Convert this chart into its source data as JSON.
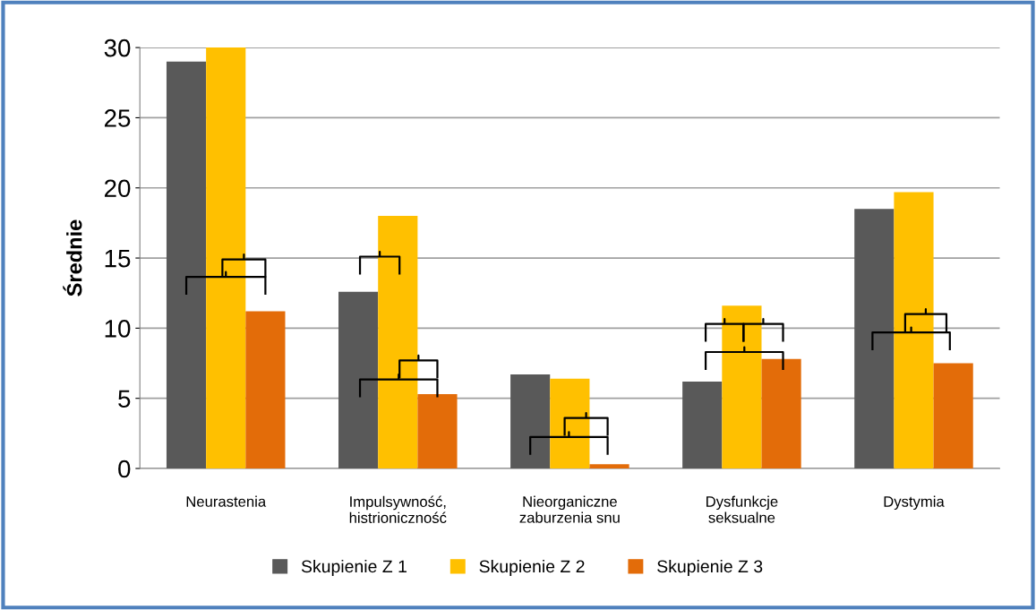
{
  "chart_data": {
    "type": "bar",
    "ylabel": "Średnie",
    "categories": [
      "Neurastenia",
      "Impulsywność,\nhistrioniczność",
      "Nieorganiczne\nzaburzenia snu",
      "Dysfunkcje\nseksualne",
      "Dystymia"
    ],
    "series": [
      {
        "name": "Skupienie Z 1",
        "color": "#595959",
        "values": [
          29.0,
          12.6,
          6.7,
          6.2,
          18.5
        ]
      },
      {
        "name": "Skupienie Z 2",
        "color": "#ffc000",
        "values": [
          30.0,
          18.0,
          6.4,
          11.6,
          19.7
        ]
      },
      {
        "name": "Skupienie Z 3",
        "color": "#e36c09",
        "values": [
          11.2,
          5.3,
          0.3,
          7.8,
          7.5
        ]
      }
    ],
    "ylim": [
      0,
      30
    ],
    "yticks": [
      0,
      5,
      10,
      15,
      20,
      25,
      30
    ],
    "grid": "y",
    "legend": "bottom"
  }
}
